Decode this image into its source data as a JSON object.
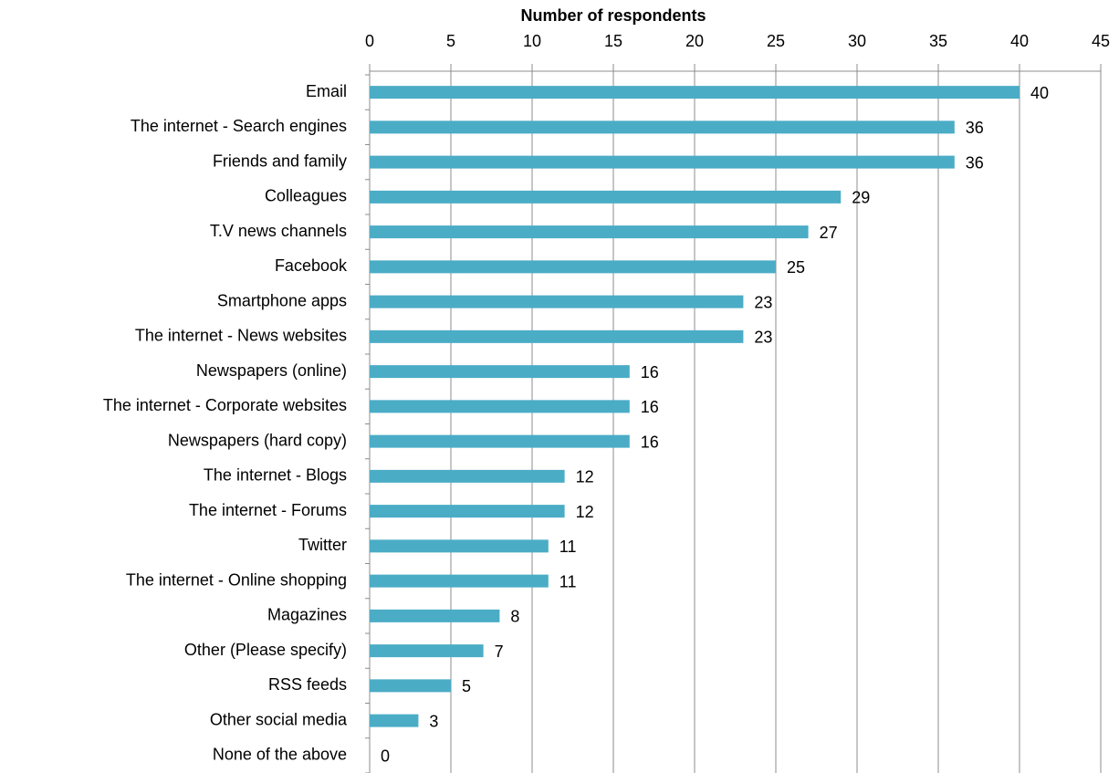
{
  "chart_data": {
    "type": "bar",
    "orientation": "horizontal",
    "x_label": "Number of respondents",
    "categories": [
      "Email",
      "The internet - Search engines",
      "Friends and family",
      "Colleagues",
      "T.V news channels",
      "Facebook",
      "Smartphone apps",
      "The internet - News websites",
      "Newspapers (online)",
      "The internet - Corporate websites",
      "Newspapers (hard copy)",
      "The internet - Blogs",
      "The internet - Forums",
      "Twitter",
      "The internet - Online shopping",
      "Magazines",
      "Other (Please specify)",
      "RSS feeds",
      "Other social media",
      "None of the above"
    ],
    "values": [
      40,
      36,
      36,
      29,
      27,
      25,
      23,
      23,
      16,
      16,
      16,
      12,
      12,
      11,
      11,
      8,
      7,
      5,
      3,
      0
    ],
    "color": "#4bacc6",
    "xlim": [
      0,
      45
    ],
    "xticks": [
      0,
      5,
      10,
      15,
      20,
      25,
      30,
      35,
      40,
      45
    ],
    "grid": true
  }
}
